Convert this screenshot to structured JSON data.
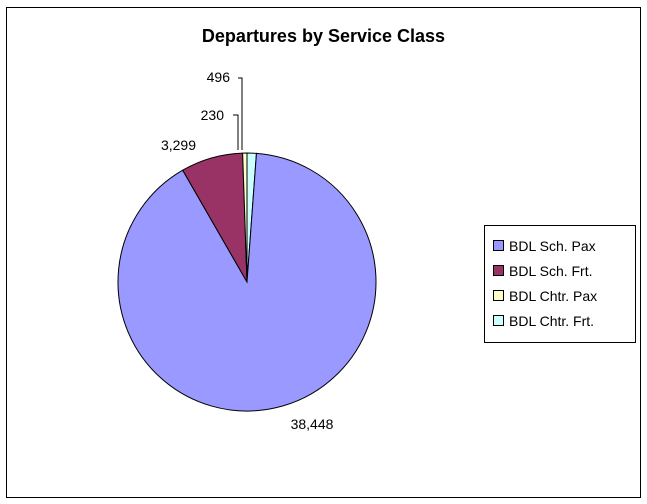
{
  "chart_data": {
    "type": "pie",
    "title": "Departures by Service Class",
    "categories": [
      "BDL Sch. Pax",
      "BDL Sch. Frt.",
      "BDL Chtr. Pax",
      "BDL Chtr. Frt."
    ],
    "values": [
      38448,
      3299,
      230,
      496
    ],
    "data_labels": [
      "38,448",
      "3,299",
      "230",
      "496"
    ],
    "colors": [
      "#9999FF",
      "#993366",
      "#FFFFCC",
      "#CCFFFF"
    ],
    "legend_position": "right",
    "start_angle": "12 o'clock",
    "direction": "counterclockwise"
  }
}
